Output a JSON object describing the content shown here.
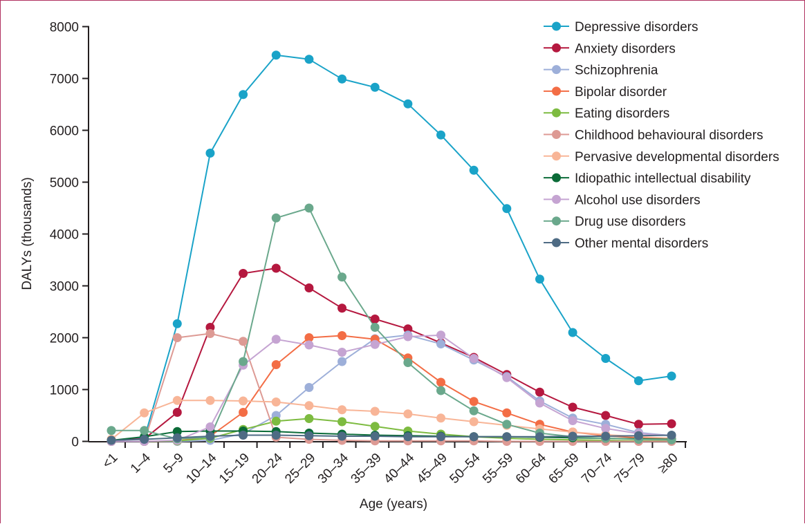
{
  "chart_data": {
    "type": "line",
    "title": "",
    "xlabel": "Age (years)",
    "ylabel": "DALYs (thousands)",
    "ylim": [
      0,
      8000
    ],
    "yticks": [
      0,
      1000,
      2000,
      3000,
      4000,
      5000,
      6000,
      7000,
      8000
    ],
    "yticks_labels": [
      "0",
      "1000",
      "2000",
      "3000",
      "4000",
      "5000",
      "6000",
      "7000",
      "8000"
    ],
    "grid": false,
    "legend_position": "top-right",
    "categories": [
      "<1",
      "1–4",
      "5–9",
      "10–14",
      "15–19",
      "20–24",
      "25–29",
      "30–34",
      "35–39",
      "40–44",
      "45–49",
      "50–54",
      "55–59",
      "60–64",
      "65–69",
      "70–74",
      "75–79",
      "≥80"
    ],
    "series": [
      {
        "name": "Depressive disorders",
        "color": "#1aa3c8",
        "values": [
          20,
          60,
          2270,
          5560,
          6690,
          7450,
          7370,
          6990,
          6830,
          6510,
          5910,
          5230,
          4490,
          3130,
          2100,
          1600,
          1170,
          1260
        ]
      },
      {
        "name": "Anxiety disorders",
        "color": "#b5183f",
        "values": [
          20,
          50,
          560,
          2200,
          3240,
          3340,
          2960,
          2570,
          2360,
          2170,
          1900,
          1620,
          1290,
          950,
          660,
          500,
          330,
          340
        ]
      },
      {
        "name": "Schizophrenia",
        "color": "#9dafd9",
        "values": [
          0,
          0,
          0,
          20,
          150,
          500,
          1040,
          1540,
          1980,
          2050,
          1880,
          1570,
          1250,
          780,
          450,
          330,
          170,
          110
        ]
      },
      {
        "name": "Bipolar disorder",
        "color": "#f36d45",
        "values": [
          0,
          0,
          10,
          100,
          560,
          1480,
          2000,
          2040,
          1970,
          1610,
          1140,
          770,
          550,
          330,
          180,
          110,
          70,
          50
        ]
      },
      {
        "name": "Eating disorders",
        "color": "#7dbb40",
        "values": [
          0,
          0,
          10,
          60,
          230,
          390,
          440,
          380,
          290,
          200,
          140,
          90,
          60,
          40,
          30,
          20,
          10,
          10
        ]
      },
      {
        "name": "Childhood behavioural disorders",
        "color": "#dd9a94",
        "values": [
          0,
          0,
          2000,
          2080,
          1930,
          80,
          40,
          20,
          10,
          10,
          10,
          10,
          0,
          0,
          0,
          0,
          0,
          0
        ]
      },
      {
        "name": "Pervasive developmental disorders",
        "color": "#f8b597",
        "values": [
          40,
          550,
          790,
          790,
          780,
          760,
          690,
          610,
          580,
          530,
          450,
          380,
          310,
          240,
          180,
          130,
          90,
          60
        ]
      },
      {
        "name": "Idiopathic intellectual disability",
        "color": "#0b6b38",
        "values": [
          20,
          90,
          190,
          200,
          200,
          190,
          160,
          140,
          120,
          110,
          100,
          90,
          90,
          80,
          70,
          60,
          50,
          40
        ]
      },
      {
        "name": "Alcohol use disorders",
        "color": "#c5a4d2",
        "values": [
          0,
          0,
          20,
          280,
          1470,
          1970,
          1860,
          1720,
          1870,
          2020,
          2050,
          1600,
          1230,
          740,
          400,
          250,
          150,
          110
        ]
      },
      {
        "name": "Drug use disorders",
        "color": "#6aa88c",
        "values": [
          210,
          210,
          50,
          80,
          1540,
          4310,
          4500,
          3170,
          2200,
          1520,
          980,
          590,
          330,
          160,
          90,
          60,
          40,
          30
        ]
      },
      {
        "name": "Other mental disorders",
        "color": "#4e6b84",
        "values": [
          20,
          40,
          70,
          100,
          120,
          120,
          110,
          100,
          100,
          90,
          90,
          90,
          90,
          90,
          100,
          100,
          110,
          120
        ]
      }
    ]
  }
}
